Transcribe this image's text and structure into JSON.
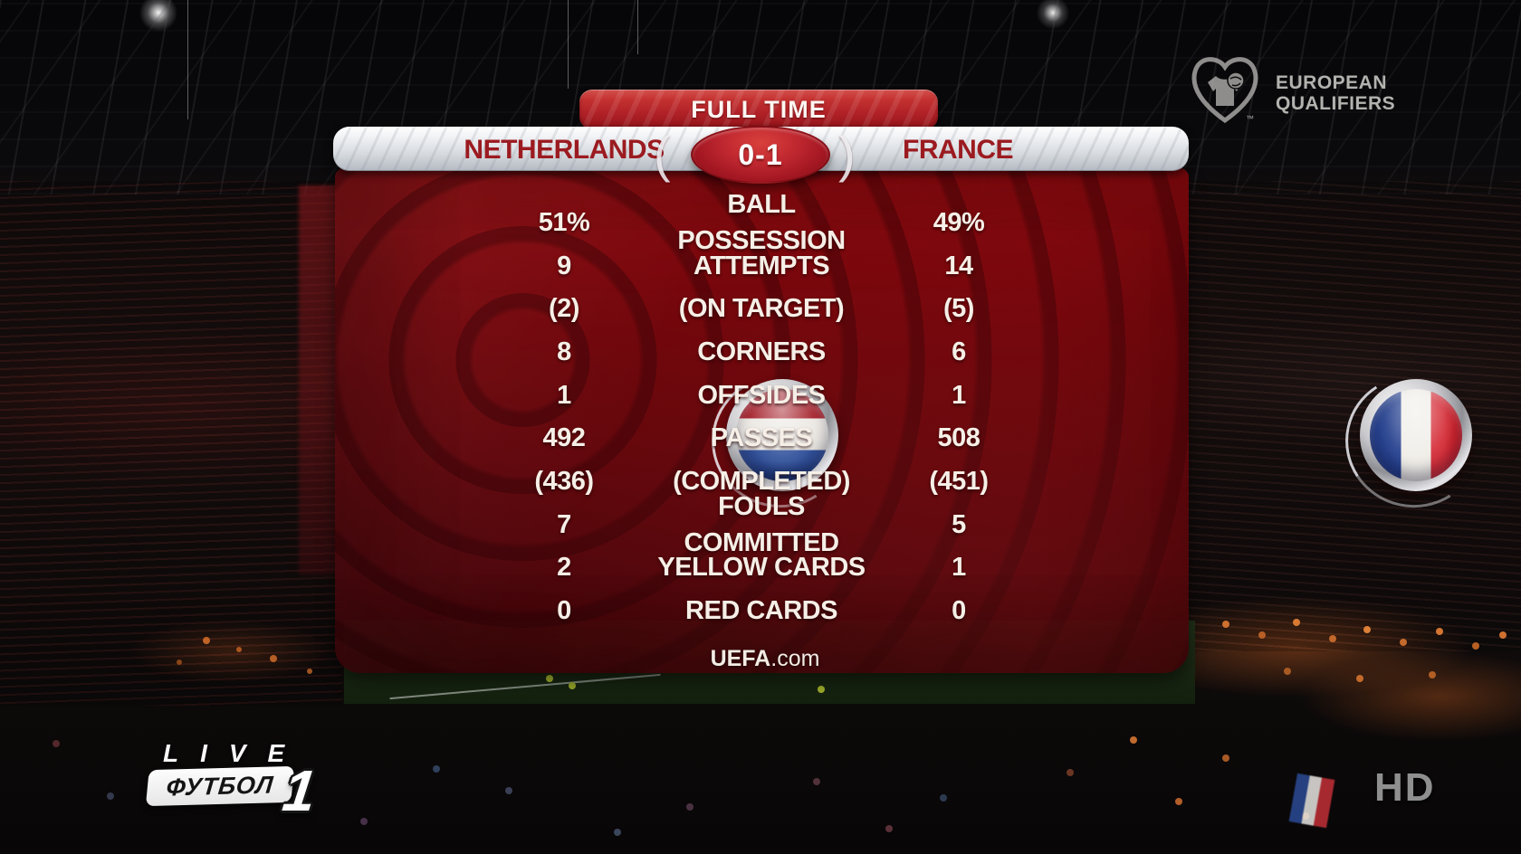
{
  "scorebug": {
    "status": "FULL TIME",
    "home_team": "NETHERLANDS",
    "away_team": "FRANCE",
    "score": "0-1",
    "decor_left": "(",
    "decor_right": ")"
  },
  "stats": {
    "rows": [
      {
        "home": "51%",
        "label": "BALL POSSESSION",
        "away": "49%"
      },
      {
        "home": "9",
        "label": "ATTEMPTS",
        "away": "14"
      },
      {
        "home": "(2)",
        "label": "(ON TARGET)",
        "away": "(5)"
      },
      {
        "home": "8",
        "label": "CORNERS",
        "away": "6"
      },
      {
        "home": "1",
        "label": "OFFSIDES",
        "away": "1"
      },
      {
        "home": "492",
        "label": "PASSES",
        "away": "508"
      },
      {
        "home": "(436)",
        "label": "(COMPLETED)",
        "away": "(451)"
      },
      {
        "home": "7",
        "label": "FOULS COMMITTED",
        "away": "5"
      },
      {
        "home": "2",
        "label": "YELLOW CARDS",
        "away": "1"
      },
      {
        "home": "0",
        "label": "RED CARDS",
        "away": "0"
      }
    ],
    "footer_bold": "UEFA",
    "footer_rest": ".com"
  },
  "flags": {
    "home_icon": "netherlands-flag",
    "away_icon": "france-flag"
  },
  "logos": {
    "competition_line1": "EUROPEAN",
    "competition_line2": "QUALIFIERS",
    "competition_icon": "uefa-heart-jersey",
    "trademark": "™",
    "live_label": "LIVE",
    "channel_name": "ФУТБОЛ",
    "channel_number": "1",
    "hd_label": "HD"
  },
  "colors": {
    "banner_red": "#b02127",
    "panel_red": "#6e060c",
    "team_text_red": "#9b1b20",
    "stat_text": "#f5efe7",
    "bar_silver": "#d6dade",
    "nl_red": "#a51f29",
    "nl_white": "#ece9e4",
    "nl_blue": "#2b4a95",
    "fr_blue": "#27428f",
    "fr_white": "#f0ede8",
    "fr_red": "#c01a24",
    "logo_gray": "#b4b3b1"
  }
}
